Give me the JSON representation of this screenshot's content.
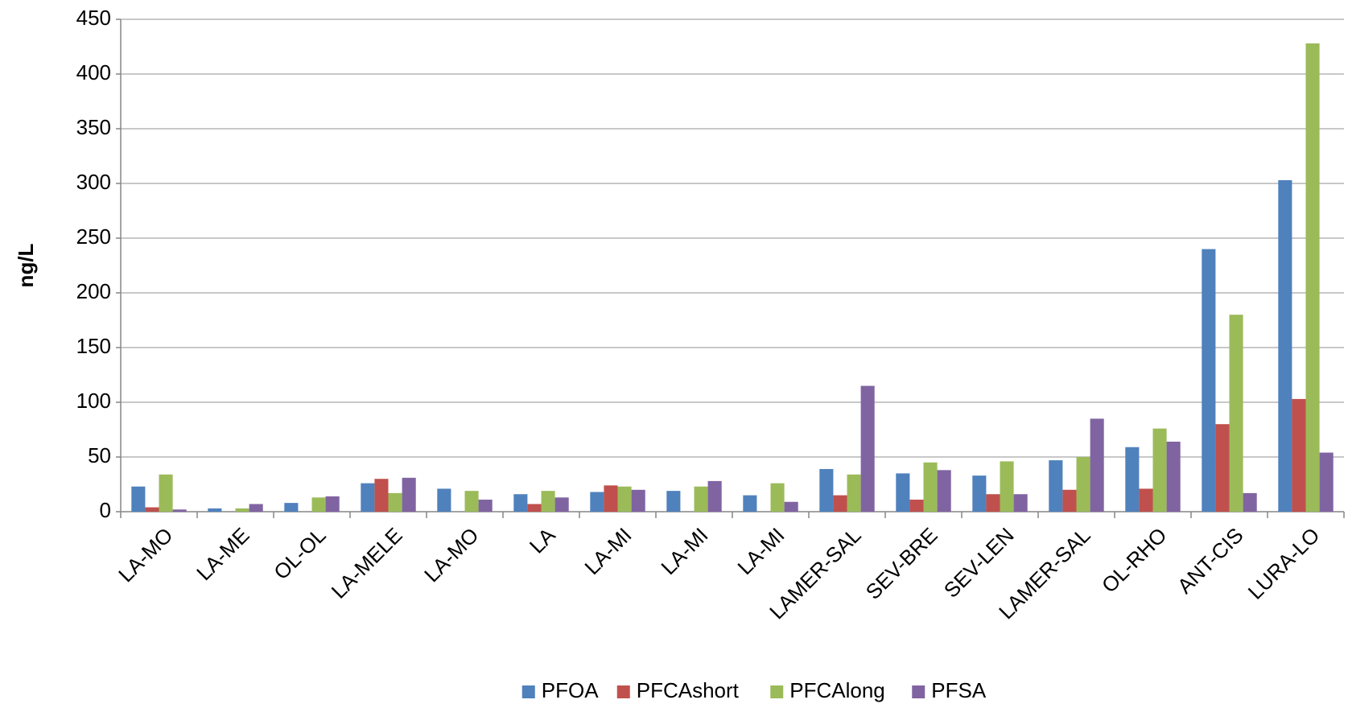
{
  "chart_data": {
    "type": "bar",
    "y_label": "ng/L",
    "categories": [
      "LA-MO",
      "LA-ME",
      "OL-OL",
      "LA-MELE",
      "LA-MO",
      "LA",
      "LA-MI",
      "LA-MI",
      "LA-MI",
      "LAMER-SAL",
      "SEV-BRE",
      "SEV-LEN",
      "LAMER-SAL",
      "OL-RHO",
      "ANT-CIS",
      "LURA-LO"
    ],
    "series": [
      {
        "name": "PFOA",
        "color": "#4f81bd",
        "values": [
          23,
          3,
          8,
          26,
          21,
          16,
          18,
          19,
          15,
          39,
          35,
          33,
          47,
          59,
          240,
          303
        ]
      },
      {
        "name": "PFCAshort",
        "color": "#c0504d",
        "values": [
          4,
          0,
          0,
          30,
          0,
          7,
          24,
          0,
          0,
          15,
          11,
          16,
          20,
          21,
          80,
          103
        ]
      },
      {
        "name": "PFCAlong",
        "color": "#9bbb59",
        "values": [
          34,
          3,
          13,
          17,
          19,
          19,
          23,
          23,
          26,
          34,
          45,
          46,
          50,
          76,
          180,
          428
        ]
      },
      {
        "name": "PFSA",
        "color": "#8064a2",
        "values": [
          2,
          7,
          14,
          31,
          11,
          13,
          20,
          28,
          9,
          115,
          38,
          16,
          85,
          64,
          17,
          54
        ]
      }
    ],
    "ylim": [
      0,
      450
    ],
    "yticks": [
      0,
      50,
      100,
      150,
      200,
      250,
      300,
      350,
      400,
      450
    ],
    "grid": true,
    "legend": "bottom"
  }
}
